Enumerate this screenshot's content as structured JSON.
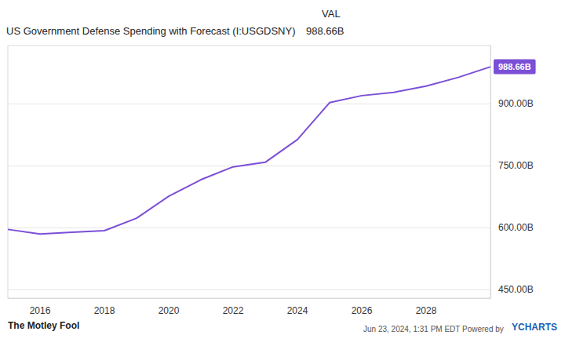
{
  "chart_data": {
    "type": "line",
    "title": "US Government Defense Spending with Forecast (I:USGDSNY)",
    "header": {
      "column": "VAL",
      "value": "988.66B"
    },
    "x": [
      2015,
      2016,
      2017,
      2018,
      2019,
      2020,
      2021,
      2022,
      2023,
      2024,
      2025,
      2026,
      2027,
      2028,
      2029,
      2030
    ],
    "values": [
      596,
      585,
      589,
      593,
      623,
      676,
      716,
      747,
      758,
      813,
      902,
      919,
      927,
      942,
      963,
      988.66
    ],
    "color": "#7b4fd6",
    "end_label": "988.66B",
    "xlim": [
      2015,
      2030
    ],
    "xticks": [
      2016,
      2018,
      2020,
      2022,
      2024,
      2026,
      2028
    ],
    "ylim": [
      430,
      1040
    ],
    "yticks": [
      {
        "value": 450,
        "label": "450.00B"
      },
      {
        "value": 600,
        "label": "600.00B"
      },
      {
        "value": 750,
        "label": "750.00B"
      },
      {
        "value": 900,
        "label": "900.00B"
      }
    ],
    "grid": true,
    "footer": {
      "left": "The Motley Fool",
      "right": "Jun 23, 2024, 1:31 PM EDT Powered by",
      "brand": "YCHARTS"
    }
  }
}
